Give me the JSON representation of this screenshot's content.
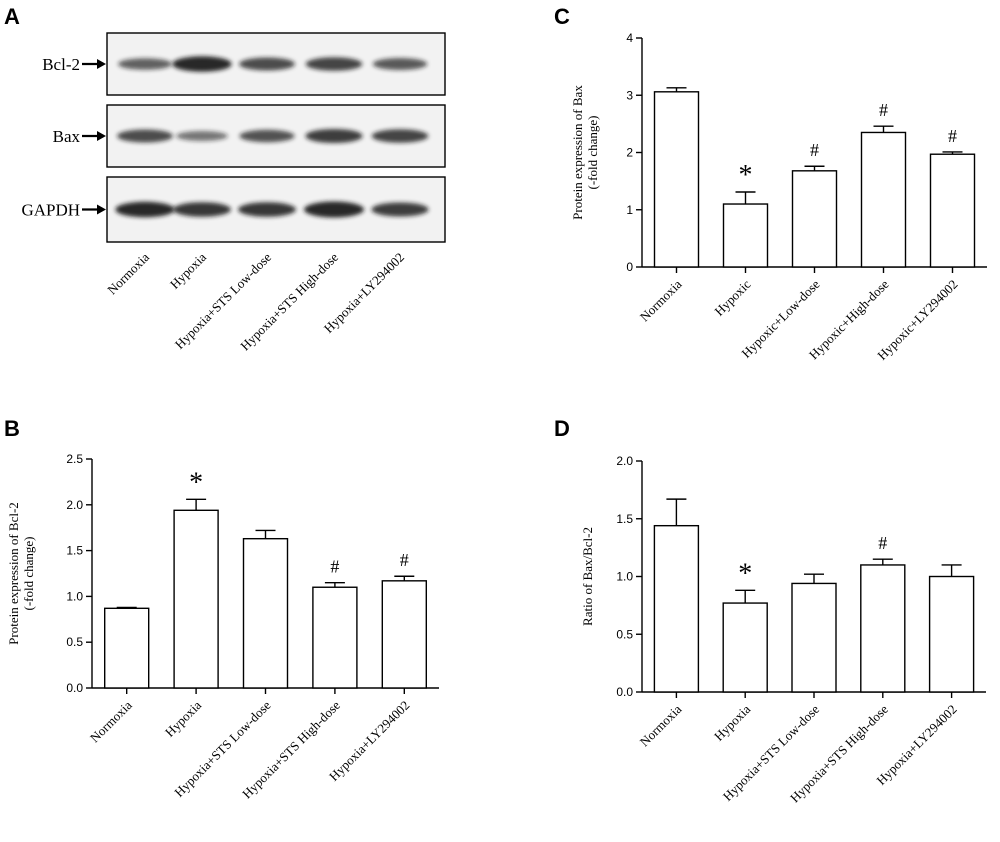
{
  "panel_letters": [
    "A",
    "B",
    "C",
    "D"
  ],
  "blot": {
    "bands": [
      {
        "label": "Bcl-2",
        "intensities": [
          0.55,
          0.95,
          0.7,
          0.75,
          0.6
        ]
      },
      {
        "label": "Bax",
        "intensities": [
          0.7,
          0.4,
          0.65,
          0.8,
          0.75
        ]
      },
      {
        "label": "GAPDH",
        "intensities": [
          0.95,
          0.85,
          0.85,
          1.0,
          0.8
        ]
      }
    ],
    "lanes": [
      "Normoxia",
      "Hypoxia",
      "Hypoxia+STS Low-dose",
      "Hypoxia+STS High-dose",
      "Hypoxia+LY294002"
    ],
    "band_color": "#1a1a1a"
  },
  "chart_data": [
    {
      "panel": "B",
      "type": "bar",
      "categories": [
        "Normoxia",
        "Hypoxia",
        "Hypoxia+STS Low-dose",
        "Hypoxia+STS High-dose",
        "Hypoxia+LY294002"
      ],
      "values": [
        0.87,
        1.94,
        1.63,
        1.1,
        1.17
      ],
      "errors": [
        0.01,
        0.12,
        0.09,
        0.05,
        0.05
      ],
      "markers": [
        "",
        "*",
        "",
        "#",
        "#"
      ],
      "ylabel": [
        "Protein expression of Bcl-2",
        "(-fold change)"
      ],
      "ylim": [
        0,
        2.5
      ],
      "yticks": [
        "0.0",
        "0.5",
        "1.0",
        "1.5",
        "2.0",
        "2.5"
      ]
    },
    {
      "panel": "C",
      "type": "bar",
      "categories": [
        "Normoxia",
        "Hypoxic",
        "Hypoxic+Low-dose",
        "Hypoxic+High-dose",
        "Hypoxic+LY294002"
      ],
      "values": [
        3.06,
        1.1,
        1.68,
        2.35,
        1.97
      ],
      "errors": [
        0.07,
        0.21,
        0.08,
        0.11,
        0.04
      ],
      "markers": [
        "",
        "*",
        "#",
        "#",
        "#"
      ],
      "ylabel": [
        "Protein expression of Bax",
        "(-fold change)"
      ],
      "ylim": [
        0,
        4
      ],
      "yticks": [
        "0",
        "1",
        "2",
        "3",
        "4"
      ]
    },
    {
      "panel": "D",
      "type": "bar",
      "categories": [
        "Normoxia",
        "Hypoxia",
        "Hypoxia+STS Low-dose",
        "Hypoxia+STS High-dose",
        "Hypoxia+LY294002"
      ],
      "values": [
        1.44,
        0.77,
        0.94,
        1.1,
        1.0
      ],
      "errors": [
        0.23,
        0.11,
        0.08,
        0.05,
        0.1
      ],
      "markers": [
        "",
        "*",
        "",
        "#",
        ""
      ],
      "ylabel": [
        "Ratio of Bax/Bcl-2"
      ],
      "ylim": [
        0,
        2.0
      ],
      "yticks": [
        "0.0",
        "0.5",
        "1.0",
        "1.5",
        "2.0"
      ]
    }
  ]
}
